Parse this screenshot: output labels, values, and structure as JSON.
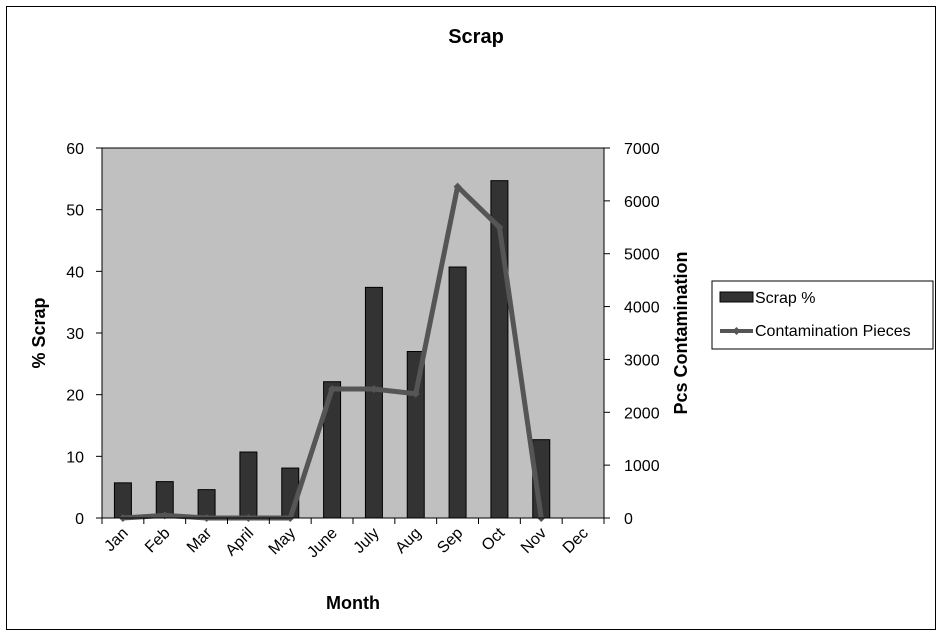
{
  "chart_data": {
    "type": "bar",
    "title": "Scrap",
    "xlabel": "Month",
    "ylabel": "% Scrap",
    "y2label": "Pcs Contamination",
    "categories": [
      "Jan",
      "Feb",
      "Mar",
      "April",
      "May",
      "June",
      "July",
      "Aug",
      "Sep",
      "Oct",
      "Nov",
      "Dec"
    ],
    "ylim": [
      0,
      60
    ],
    "y2lim": [
      0,
      7000
    ],
    "yticks": [
      "0",
      "10",
      "20",
      "30",
      "40",
      "50",
      "60"
    ],
    "y2ticks": [
      "0",
      "1000",
      "2000",
      "3000",
      "4000",
      "5000",
      "6000",
      "7000"
    ],
    "series": [
      {
        "name": "Scrap %",
        "type": "bar",
        "axis": "left",
        "color": "#333333",
        "values": [
          5.7,
          5.9,
          4.6,
          10.7,
          8.1,
          22.1,
          37.4,
          27.0,
          40.7,
          54.7,
          12.7,
          null
        ]
      },
      {
        "name": "Contamination Pieces",
        "type": "line",
        "axis": "right",
        "color": "#555555",
        "values": [
          0,
          50,
          0,
          0,
          0,
          2440,
          2440,
          2350,
          6270,
          5500,
          0,
          null
        ]
      }
    ],
    "plot_background": "#c0c0c0",
    "grid": false,
    "legend_position": "right"
  }
}
